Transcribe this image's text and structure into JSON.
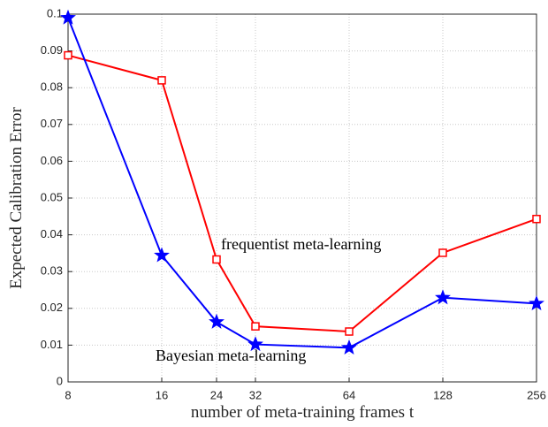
{
  "chart_data": {
    "type": "line",
    "xlabel": "number of meta-training frames t",
    "ylabel": "Expected Calibration Error",
    "x": [
      8,
      16,
      24,
      32,
      64,
      128,
      256
    ],
    "xscale": "log",
    "series": [
      {
        "name": "frequentist meta-learning",
        "color": "#ff0000",
        "marker": "square",
        "values": [
          0.0888,
          0.082,
          0.0333,
          0.0151,
          0.0137,
          0.0351,
          0.0443
        ]
      },
      {
        "name": "Bayesian meta-learning",
        "color": "#0000ff",
        "marker": "star",
        "values": [
          0.099,
          0.0344,
          0.0163,
          0.0102,
          0.0093,
          0.0229,
          0.0213
        ]
      }
    ],
    "xlim": [
      8,
      256
    ],
    "xticks": [
      8,
      16,
      24,
      32,
      64,
      128,
      256
    ],
    "ylim": [
      0,
      0.1
    ],
    "yticks": [
      0,
      0.01,
      0.02,
      0.03,
      0.04,
      0.05,
      0.06,
      0.07,
      0.08,
      0.09,
      0.1
    ],
    "grid": true
  }
}
